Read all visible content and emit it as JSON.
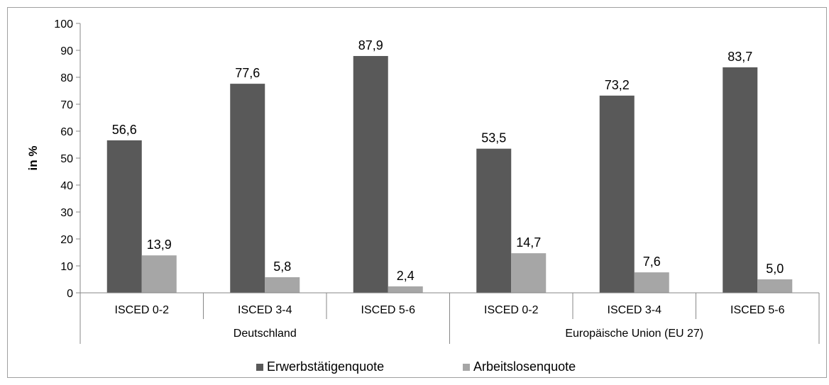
{
  "chart_data": {
    "type": "bar",
    "ylabel": "in %",
    "ylim": [
      0,
      100
    ],
    "yticks": [
      0,
      10,
      20,
      30,
      40,
      50,
      60,
      70,
      80,
      90,
      100
    ],
    "groups": [
      {
        "name": "Deutschland",
        "categories": [
          "ISCED 0-2",
          "ISCED 3-4",
          "ISCED 5-6"
        ]
      },
      {
        "name": "Europäische Union (EU 27)",
        "categories": [
          "ISCED 0-2",
          "ISCED 3-4",
          "ISCED 5-6"
        ]
      }
    ],
    "series": [
      {
        "name": "Erwerbstätigenquote",
        "color": "#595959",
        "values": [
          56.6,
          77.6,
          87.9,
          53.5,
          73.2,
          83.7
        ],
        "labels": [
          "56,6",
          "77,6",
          "87,9",
          "53,5",
          "73,2",
          "83,7"
        ]
      },
      {
        "name": "Arbeitslosenquote",
        "color": "#a6a6a6",
        "values": [
          13.9,
          5.8,
          2.4,
          14.7,
          7.6,
          5.0
        ],
        "labels": [
          "13,9",
          "5,8",
          "2,4",
          "14,7",
          "7,6",
          "5,0"
        ]
      }
    ],
    "legend": "bottom",
    "grid": false
  }
}
